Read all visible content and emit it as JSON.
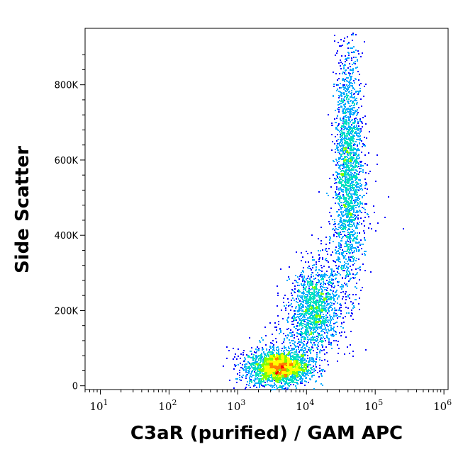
{
  "chart_data": {
    "type": "scatter",
    "style": "density-colored flow cytometry dot plot",
    "xlabel": "C3aR (purified) / GAM APC",
    "ylabel": "Side Scatter",
    "x_scale": "log",
    "xlim": [
      6,
      1150000
    ],
    "ylim": [
      -10000,
      950000
    ],
    "x_ticks": [
      {
        "base": "10",
        "exp": "1",
        "value": 10
      },
      {
        "base": "10",
        "exp": "2",
        "value": 100
      },
      {
        "base": "10",
        "exp": "3",
        "value": 1000
      },
      {
        "base": "10",
        "exp": "4",
        "value": 10000
      },
      {
        "base": "10",
        "exp": "5",
        "value": 100000
      },
      {
        "base": "10",
        "exp": "6",
        "value": 1000000
      }
    ],
    "y_ticks": [
      {
        "label": "0",
        "value": 0
      },
      {
        "label": "200K",
        "value": 200000
      },
      {
        "label": "400K",
        "value": 400000
      },
      {
        "label": "600K",
        "value": 600000
      },
      {
        "label": "800K",
        "value": 800000
      }
    ],
    "density_colors": [
      "#0000ff",
      "#00aaff",
      "#00e0c0",
      "#80ff00",
      "#ffff00",
      "#ff8000",
      "#ff0000"
    ],
    "populations": [
      {
        "center_x": 4000,
        "center_y": 50000,
        "spread_log_x": 0.22,
        "spread_y": 22000,
        "weight": 0.42
      },
      {
        "center_x": 40000,
        "center_y": 580000,
        "spread_log_x": 0.1,
        "spread_y": 160000,
        "weight": 0.36
      },
      {
        "center_x": 13000,
        "center_y": 200000,
        "spread_log_x": 0.18,
        "spread_y": 55000,
        "weight": 0.22
      }
    ],
    "grid": false,
    "legend": "none"
  }
}
